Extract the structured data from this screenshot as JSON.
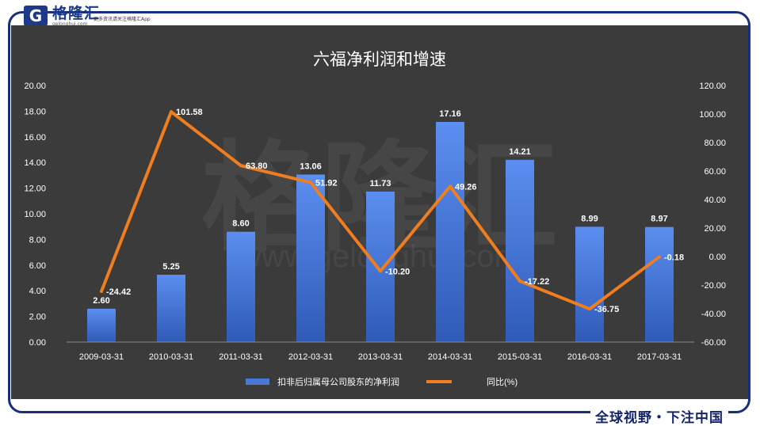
{
  "header": {
    "logo_mark": "G",
    "logo_name": "格隆汇",
    "logo_url": "gelonghui.com",
    "tagline": "更多资讯请关注格隆汇App"
  },
  "footer": {
    "tagline": "全球视野・下注中国"
  },
  "watermark": {
    "text": "格隆汇",
    "url": "www.gelonghui.com"
  },
  "colors": {
    "background": "#3b3b3b",
    "bar": "#4a78d6",
    "line": "#f07d1e",
    "text": "#ffffff",
    "grid": "#666666"
  },
  "chart_data": {
    "type": "bar",
    "title": "六福净利润和增速",
    "categories": [
      "2009-03-31",
      "2010-03-31",
      "2011-03-31",
      "2012-03-31",
      "2013-03-31",
      "2014-03-31",
      "2015-03-31",
      "2016-03-31",
      "2017-03-31"
    ],
    "series": [
      {
        "name": "扣非后归属母公司股东的净利润",
        "type": "bar",
        "axis": "left",
        "values": [
          2.6,
          5.25,
          8.6,
          13.06,
          11.73,
          17.16,
          14.21,
          8.99,
          8.97
        ],
        "labels": [
          "2.60",
          "5.25",
          "8.60",
          "13.06",
          "11.73",
          "17.16",
          "14.21",
          "8.99",
          "8.97"
        ]
      },
      {
        "name": "同比(%)",
        "type": "line",
        "axis": "right",
        "values": [
          -24.42,
          101.58,
          63.8,
          51.92,
          -10.2,
          49.26,
          -17.22,
          -36.75,
          -0.18
        ],
        "labels": [
          "-24.42",
          "101.58",
          "63.80",
          "51.92",
          "-10.20",
          "49.26",
          "-17.22",
          "-36.75",
          "-0.18"
        ]
      }
    ],
    "y_left": {
      "min": 0,
      "max": 20,
      "step": 2,
      "ticks": [
        "0.00",
        "2.00",
        "4.00",
        "6.00",
        "8.00",
        "10.00",
        "12.00",
        "14.00",
        "16.00",
        "18.00",
        "20.00"
      ]
    },
    "y_right": {
      "min": -60,
      "max": 120,
      "step": 20,
      "ticks": [
        "-60.00",
        "-40.00",
        "-20.00",
        "0.00",
        "20.00",
        "40.00",
        "60.00",
        "80.00",
        "100.00",
        "120.00"
      ]
    },
    "legend": "bottom",
    "grid": false
  }
}
